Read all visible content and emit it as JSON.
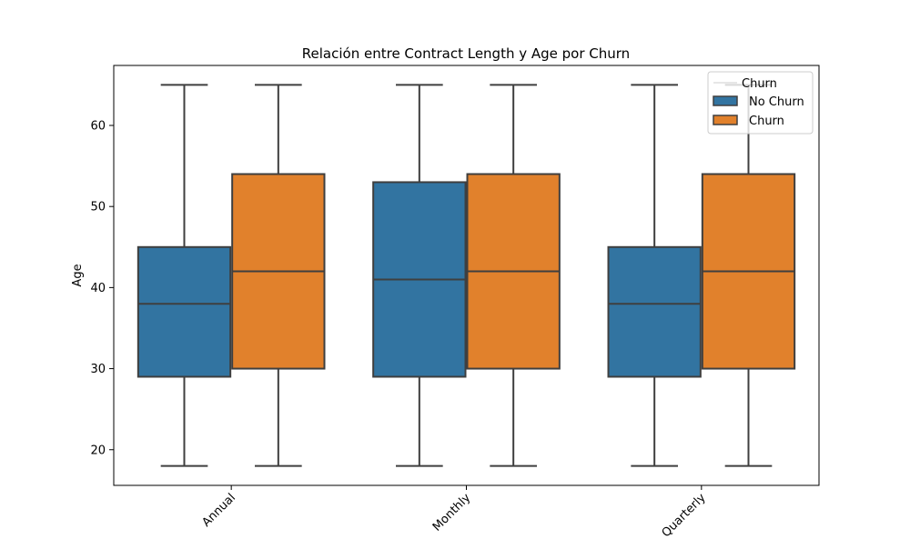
{
  "chart_data": {
    "type": "box",
    "title": "Relación entre Contract Length y Age por Churn",
    "xlabel": "",
    "ylabel": "Age",
    "ylim": [
      15.6,
      67.4
    ],
    "yticks": [
      20,
      30,
      40,
      50,
      60
    ],
    "categories": [
      "Annual",
      "Monthly",
      "Quarterly"
    ],
    "grid": false,
    "legend": {
      "title": "Churn",
      "placement": "top-right",
      "entries": [
        "No Churn",
        "Churn"
      ]
    },
    "series": [
      {
        "name": "No Churn",
        "color": "#3274a1",
        "boxes": [
          {
            "whislo": 18,
            "q1": 29,
            "med": 38,
            "q3": 45,
            "whishi": 65
          },
          {
            "whislo": 18,
            "q1": 29,
            "med": 41,
            "q3": 53,
            "whishi": 65
          },
          {
            "whislo": 18,
            "q1": 29,
            "med": 38,
            "q3": 45,
            "whishi": 65
          }
        ]
      },
      {
        "name": "Churn",
        "color": "#e1812c",
        "boxes": [
          {
            "whislo": 18,
            "q1": 30,
            "med": 42,
            "q3": 54,
            "whishi": 65
          },
          {
            "whislo": 18,
            "q1": 30,
            "med": 42,
            "q3": 54,
            "whishi": 65
          },
          {
            "whislo": 18,
            "q1": 30,
            "med": 42,
            "q3": 54,
            "whishi": 65
          }
        ]
      }
    ]
  }
}
